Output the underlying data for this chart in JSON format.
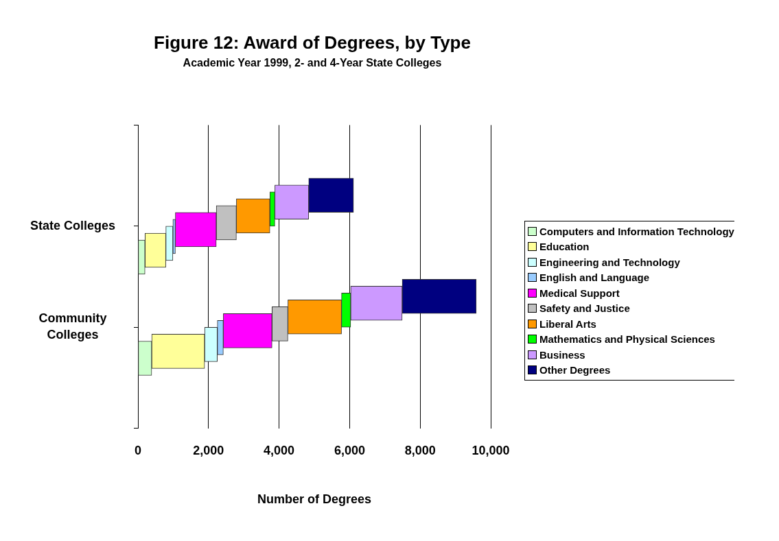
{
  "chart_data": {
    "type": "bar",
    "orientation": "horizontal",
    "stacked": true,
    "title": "Figure 12: Award of Degrees, by Type",
    "subtitle": "Academic Year 1999, 2- and 4-Year State Colleges",
    "xlabel": "Number of Degrees",
    "categories": [
      "State Colleges",
      "Community Colleges"
    ],
    "series": [
      {
        "name": "Computers and Information Technology",
        "color": "#ccffcc",
        "values": [
          200,
          390
        ]
      },
      {
        "name": "Education",
        "color": "#ffff99",
        "values": [
          590,
          1500
        ]
      },
      {
        "name": "Engineering and Technology",
        "color": "#ccffff",
        "values": [
          200,
          360
        ]
      },
      {
        "name": "English and Language",
        "color": "#99ccff",
        "values": [
          70,
          170
        ]
      },
      {
        "name": "Medical Support",
        "color": "#ff00ff",
        "values": [
          1160,
          1380
        ]
      },
      {
        "name": "Safety and Justice",
        "color": "#c0c0c0",
        "values": [
          570,
          450
        ]
      },
      {
        "name": "Liberal Arts",
        "color": "#ff9900",
        "values": [
          950,
          1520
        ]
      },
      {
        "name": "Mathematics and Physical Sciences",
        "color": "#00ff00",
        "values": [
          140,
          260
        ]
      },
      {
        "name": "Business",
        "color": "#cc99ff",
        "values": [
          960,
          1460
        ]
      },
      {
        "name": "Other Degrees",
        "color": "#000080",
        "values": [
          1270,
          2100
        ]
      }
    ],
    "xlim": [
      0,
      10000
    ],
    "xticks": [
      0,
      {
        "value": 2000,
        "label": "2,000"
      },
      {
        "value": 4000,
        "label": "4,000"
      },
      {
        "value": 6000,
        "label": "6,000"
      },
      {
        "value": 8000,
        "label": "8,000"
      },
      {
        "value": 10000,
        "label": "10,000"
      }
    ],
    "grid": "x",
    "legend": "right"
  }
}
